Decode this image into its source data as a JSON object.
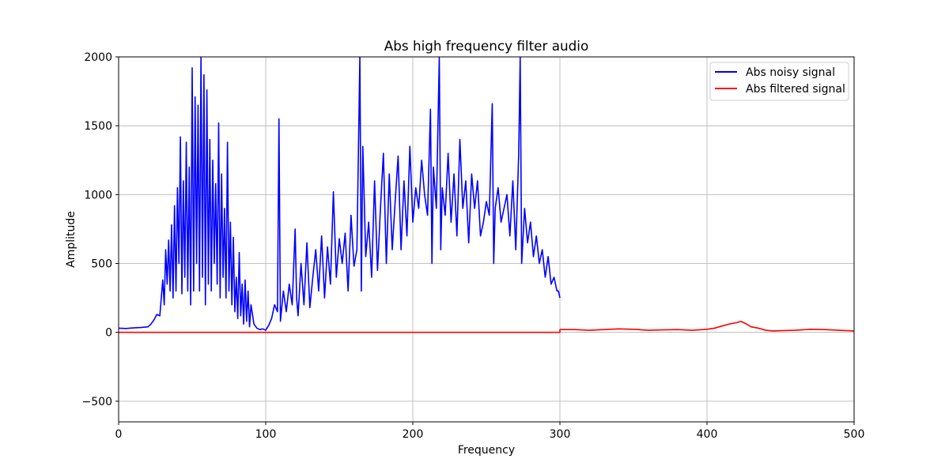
{
  "chart_data": {
    "type": "line",
    "title": "Abs high frequency filter audio",
    "xlabel": "Frequency",
    "ylabel": "Amplitude",
    "xlim": [
      0,
      500
    ],
    "ylim": [
      -650,
      2000
    ],
    "xticks": [
      0,
      100,
      200,
      300,
      400,
      500
    ],
    "yticks": [
      -500,
      0,
      500,
      1000,
      1500,
      2000
    ],
    "xtick_labels": [
      "0",
      "100",
      "200",
      "300",
      "400",
      "500"
    ],
    "ytick_labels": [
      "−500",
      "0",
      "500",
      "1000",
      "1500",
      "2000"
    ],
    "grid": true,
    "legend_position": "top-right",
    "series": [
      {
        "name": "Abs noisy signal",
        "color": "#0000ff",
        "x": [
          0,
          5,
          10,
          15,
          20,
          22,
          24,
          26,
          28,
          30,
          31,
          32,
          33,
          34,
          35,
          36,
          37,
          38,
          39,
          40,
          41,
          42,
          43,
          44,
          45,
          46,
          47,
          48,
          49,
          50,
          51,
          52,
          53,
          54,
          55,
          56,
          57,
          58,
          59,
          60,
          61,
          62,
          63,
          64,
          65,
          66,
          67,
          68,
          69,
          70,
          71,
          72,
          73,
          74,
          75,
          76,
          77,
          78,
          79,
          80,
          81,
          82,
          83,
          84,
          85,
          86,
          87,
          88,
          89,
          90,
          92,
          94,
          96,
          98,
          100,
          102,
          104,
          106,
          108,
          109,
          110,
          112,
          114,
          116,
          118,
          120,
          121,
          122,
          124,
          126,
          128,
          130,
          132,
          134,
          136,
          138,
          140,
          142,
          144,
          146,
          148,
          150,
          152,
          154,
          156,
          158,
          160,
          162,
          164,
          165,
          166,
          168,
          170,
          172,
          174,
          176,
          178,
          180,
          182,
          184,
          186,
          188,
          190,
          192,
          194,
          196,
          198,
          200,
          202,
          204,
          206,
          208,
          210,
          212,
          213,
          214,
          216,
          218,
          219,
          220,
          222,
          224,
          226,
          228,
          230,
          232,
          234,
          236,
          238,
          240,
          242,
          244,
          246,
          248,
          250,
          252,
          254,
          255,
          256,
          258,
          260,
          262,
          264,
          266,
          268,
          270,
          272,
          273,
          274,
          276,
          278,
          280,
          282,
          284,
          286,
          288,
          290,
          292,
          294,
          296,
          298,
          299,
          300
        ],
        "y": [
          30,
          28,
          32,
          35,
          40,
          60,
          90,
          130,
          120,
          380,
          200,
          600,
          350,
          670,
          300,
          780,
          250,
          920,
          300,
          1050,
          500,
          1420,
          280,
          1100,
          400,
          1380,
          300,
          1200,
          200,
          1920,
          300,
          1710,
          500,
          1650,
          300,
          2000,
          400,
          1870,
          200,
          1760,
          350,
          1400,
          300,
          1250,
          500,
          1080,
          350,
          1520,
          250,
          1150,
          400,
          900,
          250,
          1380,
          300,
          800,
          200,
          690,
          150,
          400,
          100,
          580,
          120,
          350,
          60,
          380,
          80,
          300,
          40,
          200,
          60,
          30,
          20,
          25,
          15,
          50,
          100,
          200,
          150,
          1550,
          80,
          300,
          150,
          350,
          200,
          750,
          250,
          120,
          500,
          200,
          650,
          180,
          400,
          600,
          300,
          700,
          250,
          620,
          350,
          1020,
          400,
          680,
          500,
          720,
          300,
          850,
          480,
          600,
          2000,
          300,
          1350,
          550,
          800,
          400,
          1100,
          450,
          900,
          1300,
          500,
          1150,
          600,
          950,
          1280,
          600,
          1100,
          700,
          1350,
          800,
          1050,
          900,
          1250,
          1000,
          850,
          1620,
          500,
          1200,
          900,
          2000,
          600,
          1050,
          850,
          1300,
          800,
          1150,
          700,
          1400,
          900,
          1100,
          650,
          1150,
          900,
          1100,
          700,
          800,
          950,
          850,
          1660,
          500,
          900,
          1050,
          800,
          900,
          1000,
          700,
          1100,
          600,
          1300,
          2000,
          500,
          900,
          650,
          800,
          550,
          700,
          500,
          600,
          400,
          550,
          350,
          400,
          300,
          300,
          250
        ]
      },
      {
        "name": "Abs filtered signal",
        "color": "#ff0000",
        "x": [
          0,
          300,
          300,
          310,
          320,
          330,
          340,
          350,
          360,
          370,
          380,
          390,
          400,
          405,
          410,
          415,
          420,
          423,
          426,
          430,
          435,
          440,
          445,
          450,
          460,
          470,
          480,
          490,
          500
        ],
        "y": [
          0,
          0,
          20,
          20,
          15,
          20,
          25,
          22,
          15,
          18,
          20,
          15,
          22,
          30,
          45,
          60,
          70,
          80,
          65,
          40,
          30,
          15,
          10,
          12,
          15,
          22,
          20,
          15,
          10
        ]
      }
    ]
  }
}
